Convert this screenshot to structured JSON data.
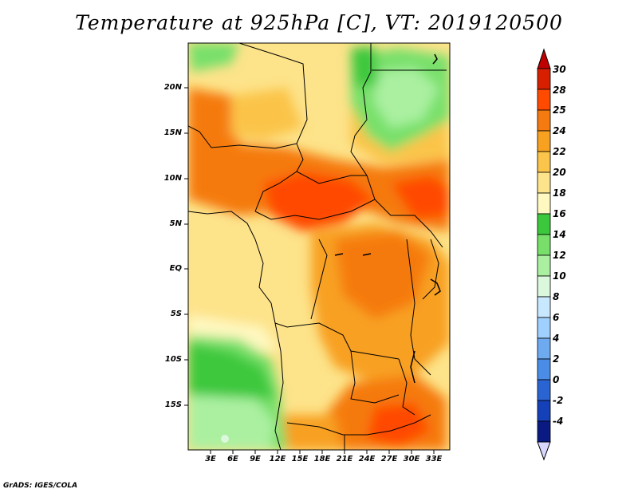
{
  "title": "Temperature at 925hPa [C], VT: 2019120500",
  "credit": "GrADS: IGES/COLA",
  "lat_ticks": [
    "20N",
    "15N",
    "10N",
    "5N",
    "EQ",
    "5S",
    "10S",
    "15S"
  ],
  "lon_ticks": [
    "3E",
    "6E",
    "9E",
    "12E",
    "15E",
    "18E",
    "21E",
    "24E",
    "27E",
    "30E",
    "33E"
  ],
  "colorbar": {
    "labels": [
      "30",
      "28",
      "25",
      "24",
      "22",
      "20",
      "18",
      "16",
      "14",
      "12",
      "10",
      "8",
      "6",
      "4",
      "2",
      "0",
      "-2",
      "-4"
    ],
    "colors": [
      "#d62000",
      "#ff4a00",
      "#f57a10",
      "#f8a020",
      "#fbc44a",
      "#fde38a",
      "#fff8c0",
      "#3cc83c",
      "#78e06a",
      "#aaf0a0",
      "#dcf8dc",
      "#c8e8ff",
      "#a0d0ff",
      "#6eaaf0",
      "#4a8ce6",
      "#2a64d2",
      "#1440b8",
      "#0a1a82"
    ],
    "over_color": "#c00000",
    "under_color": "#d8d8ff"
  }
}
